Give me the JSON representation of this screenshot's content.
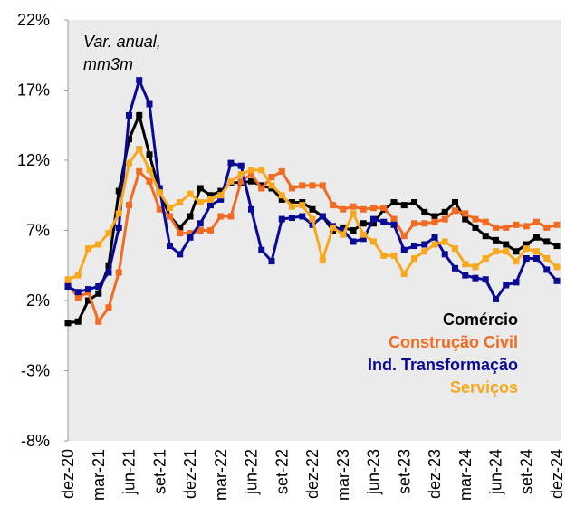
{
  "chart_data": {
    "type": "line",
    "annotation": [
      "Var. anual,",
      "mm3m"
    ],
    "categories": [
      "dez-20",
      null,
      null,
      "mar-21",
      null,
      null,
      "jun-21",
      null,
      null,
      "set-21",
      null,
      null,
      "dez-21",
      null,
      null,
      "mar-22",
      null,
      null,
      "jun-22",
      null,
      null,
      "set-22",
      null,
      null,
      "dez-22",
      null,
      null,
      "mar-23",
      null,
      null,
      "jun-23",
      null,
      null,
      "set-23",
      null,
      null,
      "dez-23",
      null,
      null,
      "mar-24",
      null,
      null,
      "jun-24",
      null,
      null,
      "set-24",
      null,
      null,
      "dez-24"
    ],
    "ylim": [
      -8,
      22
    ],
    "yticks": [
      {
        "value": -8,
        "label": "-8%"
      },
      {
        "value": -3,
        "label": "-3%"
      },
      {
        "value": 2,
        "label": "2%"
      },
      {
        "value": 7,
        "label": "7%"
      },
      {
        "value": 12,
        "label": "12%"
      },
      {
        "value": 17,
        "label": "17%"
      },
      {
        "value": 22,
        "label": "22%"
      }
    ],
    "grid": false,
    "series": [
      {
        "name": "Comércio",
        "color": "#000000",
        "values": [
          0.4,
          0.5,
          2,
          2.5,
          4.5,
          9.8,
          13.5,
          15.2,
          12.4,
          9.8,
          8,
          7.2,
          8,
          10,
          9.5,
          9.8,
          10.4,
          10.4,
          10.5,
          10.2,
          10,
          9.2,
          9,
          9,
          8.5,
          8,
          7,
          7.2,
          7,
          7.5,
          7.5,
          8.5,
          9,
          8.8,
          9,
          8.3,
          8,
          8.3,
          9,
          7.8,
          7.2,
          6.6,
          6.3,
          6,
          5.5,
          6,
          6.5,
          6.2,
          5.9
        ]
      },
      {
        "name": "Construção Civil",
        "color": "#f26b21",
        "values": [
          3.2,
          2.2,
          2.6,
          0.5,
          1.5,
          4,
          8.8,
          11.2,
          10.5,
          8.5,
          8,
          6.8,
          6.8,
          7,
          7,
          8,
          8,
          10.5,
          11,
          10,
          10.8,
          11.2,
          10,
          10.2,
          10.2,
          10.2,
          8.8,
          8.5,
          8.7,
          8.5,
          8.6,
          8.6,
          7.8,
          6.6,
          7.5,
          7.5,
          7.6,
          7.8,
          8.4,
          8.2,
          7.8,
          7.6,
          7.2,
          7.2,
          7.4,
          7.3,
          7.6,
          7.2,
          7.4
        ]
      },
      {
        "name": "Ind. Transformação",
        "color": "#0a0a96",
        "values": [
          3,
          2.6,
          2.8,
          3,
          4,
          7.2,
          15.2,
          17.7,
          16,
          10,
          5.9,
          5.3,
          6.5,
          7.5,
          8.8,
          9.2,
          11.8,
          11.6,
          8.5,
          5.6,
          4.8,
          7.8,
          7.9,
          8,
          7.4,
          8,
          7.3,
          7,
          6.2,
          6.4,
          7.8,
          7.6,
          7.4,
          5.6,
          5.9,
          6,
          6.5,
          5.3,
          4.3,
          3.8,
          3.6,
          3.5,
          2.1,
          3.1,
          3.3,
          5,
          5,
          4.2,
          3.4
        ]
      },
      {
        "name": "Serviços",
        "color": "#f8a81c",
        "values": [
          3.5,
          3.8,
          5.7,
          6,
          6.8,
          8.2,
          11.8,
          12.8,
          11.3,
          9.7,
          8.6,
          9,
          9.6,
          9,
          9.2,
          9.5,
          10.5,
          11,
          11.3,
          11.3,
          10.2,
          9.5,
          8.7,
          8.8,
          7.8,
          4.9,
          7.2,
          6.7,
          8.2,
          6.7,
          6.2,
          5.2,
          5.2,
          3.9,
          5,
          5.5,
          6,
          6.2,
          5.7,
          4.6,
          4.4,
          5,
          5.5,
          5.5,
          4.8,
          5.7,
          5.5,
          5,
          4.4
        ]
      }
    ]
  }
}
